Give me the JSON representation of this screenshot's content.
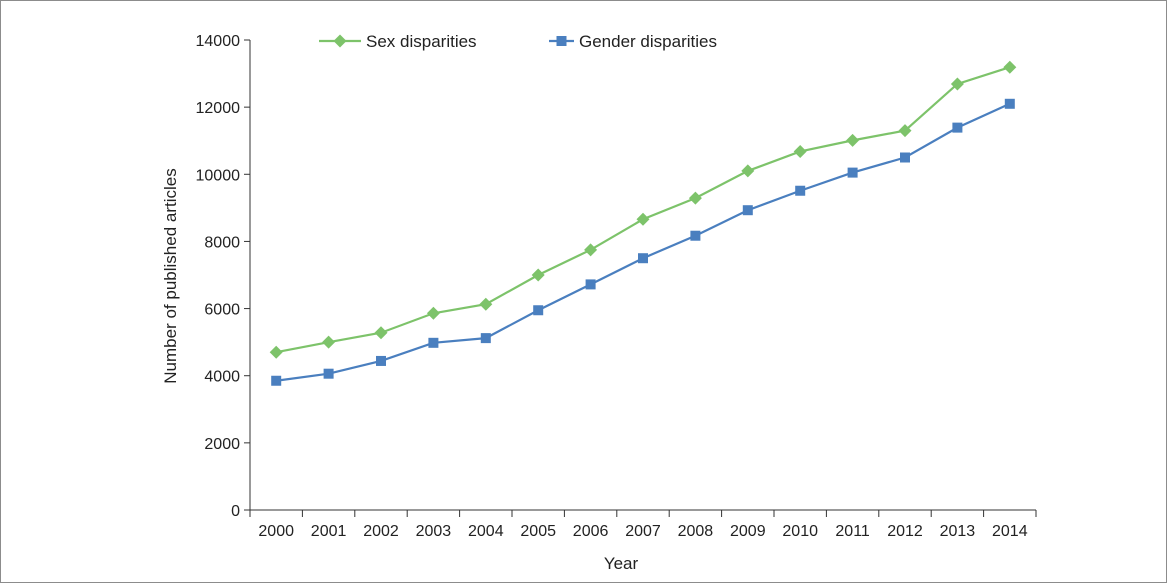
{
  "chart_data": {
    "type": "line",
    "title": "",
    "xlabel": "Year",
    "ylabel": "Number of published articles",
    "categories": [
      "2000",
      "2001",
      "2002",
      "2003",
      "2004",
      "2005",
      "2006",
      "2007",
      "2008",
      "2009",
      "2010",
      "2011",
      "2012",
      "2013",
      "2014"
    ],
    "ylim": [
      0,
      14000
    ],
    "yticks": [
      0,
      2000,
      4000,
      6000,
      8000,
      10000,
      12000,
      14000
    ],
    "ytick_labels": [
      "0",
      "2000",
      "4000",
      "6000",
      "8000",
      "10000",
      "12000",
      "14000"
    ],
    "grid": false,
    "legend_position": "top",
    "series": [
      {
        "name": "Sex disparities",
        "color": "#7dc36a",
        "marker": "diamond",
        "values": [
          4700,
          5000,
          5280,
          5860,
          6130,
          7000,
          7750,
          8660,
          9290,
          10100,
          10680,
          11010,
          11300,
          12690,
          13190
        ]
      },
      {
        "name": "Gender disparities",
        "color": "#4a7fbf",
        "marker": "square",
        "values": [
          3850,
          4060,
          4440,
          4980,
          5120,
          5950,
          6720,
          7500,
          8170,
          8930,
          9510,
          10050,
          10500,
          11390,
          12100
        ]
      }
    ]
  }
}
